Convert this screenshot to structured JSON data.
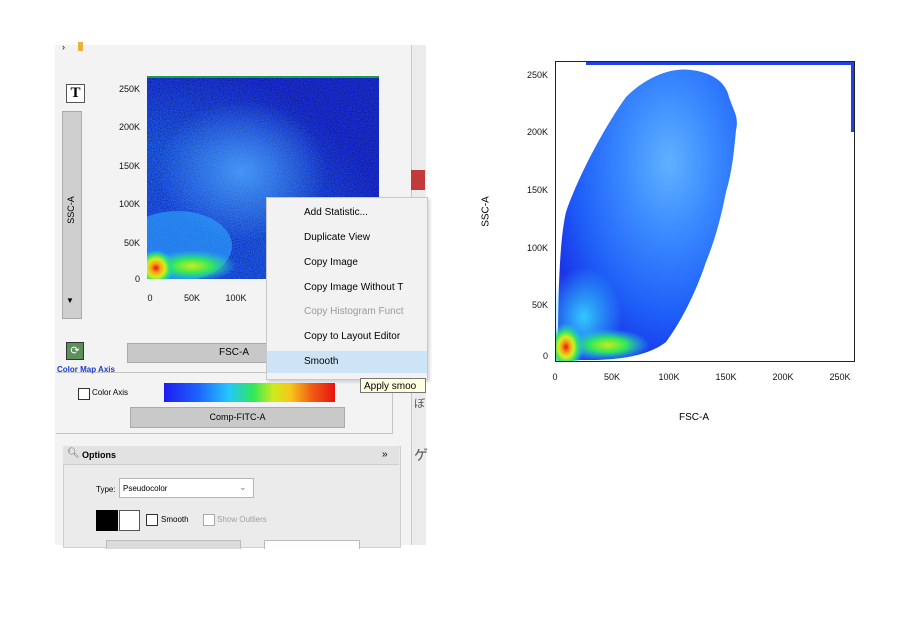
{
  "left_panel": {
    "title_tool_icon": "T",
    "y_parameter": "SSC-A",
    "x_parameter": "FSC-A",
    "y_ticks": [
      "250K",
      "200K",
      "150K",
      "100K",
      "50K",
      "0"
    ],
    "x_ticks": [
      "0",
      "50K",
      "100K"
    ],
    "color_map_axis": {
      "title": "Color Map Axis",
      "checkbox_label": "Color Axis",
      "checked": false,
      "parameter": "Comp-FITC-A",
      "gradient": [
        "#1c1cf0",
        "#1e63ff",
        "#25c6ff",
        "#2ee85c",
        "#cfeb1b",
        "#f8c51a",
        "#f06013",
        "#e81212"
      ]
    },
    "options": {
      "title": "Options",
      "type_label": "Type:",
      "type_value": "Pseudocolor",
      "smooth_label": "Smooth",
      "smooth_checked": false,
      "outliers_label": "Show Outliers",
      "outliers_checked": false
    }
  },
  "context_menu": {
    "items": [
      {
        "label": "Add Statistic...",
        "disabled": false,
        "highlighted": false
      },
      {
        "label": "Duplicate View",
        "disabled": false,
        "highlighted": false
      },
      {
        "label": "Copy Image",
        "disabled": false,
        "highlighted": false
      },
      {
        "label": "Copy Image Without T",
        "disabled": false,
        "highlighted": false
      },
      {
        "label": "Copy Histogram Funct",
        "disabled": true,
        "highlighted": false
      },
      {
        "label": "Copy to Layout Editor",
        "disabled": false,
        "highlighted": false
      },
      {
        "label": "Smooth",
        "disabled": false,
        "highlighted": true
      }
    ],
    "tooltip": "Apply smoo"
  },
  "right_plot": {
    "y_label": "SSC-A",
    "x_label": "FSC-A",
    "y_ticks": [
      "250K",
      "200K",
      "150K",
      "100K",
      "50K",
      "0"
    ],
    "x_ticks": [
      "0",
      "50K",
      "100K",
      "150K",
      "200K",
      "250K"
    ]
  },
  "chart_data": [
    {
      "type": "scatter",
      "style": "pseudocolor density plot (unsmoothed)",
      "xlabel": "FSC-A",
      "ylabel": "SSC-A",
      "xlim": [
        0,
        110000
      ],
      "ylim": [
        0,
        262000
      ],
      "x_ticks": [
        0,
        50000,
        100000
      ],
      "y_ticks": [
        0,
        50000,
        100000,
        150000,
        200000,
        250000
      ],
      "density_peaks": [
        {
          "x": 6000,
          "y": 8000,
          "level": "high"
        },
        {
          "x": 40000,
          "y": 12000,
          "level": "medium"
        }
      ]
    },
    {
      "type": "scatter",
      "style": "pseudocolor density plot (smoothed)",
      "xlabel": "FSC-A",
      "ylabel": "SSC-A",
      "xlim": [
        0,
        262000
      ],
      "ylim": [
        0,
        262000
      ],
      "x_ticks": [
        0,
        50000,
        100000,
        150000,
        200000,
        250000
      ],
      "y_ticks": [
        0,
        50000,
        100000,
        150000,
        200000,
        250000
      ],
      "density_peaks": [
        {
          "x": 8000,
          "y": 12000,
          "level": "high"
        },
        {
          "x": 50000,
          "y": 15000,
          "level": "medium"
        }
      ]
    }
  ]
}
